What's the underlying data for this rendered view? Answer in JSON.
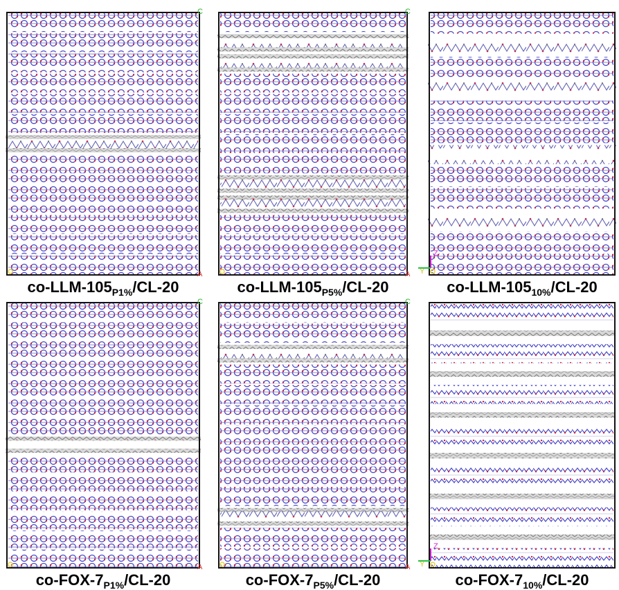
{
  "panels": [
    {
      "label": {
        "main": "co-LLM-105",
        "sub": "P1%",
        "tail": "/CL-20"
      },
      "corners": {
        "top_right": "C",
        "bottom_right": "A"
      }
    },
    {
      "label": {
        "main": "co-LLM-105",
        "sub": "P5%",
        "tail": "/CL-20"
      },
      "corners": {
        "top_right": "C",
        "bottom_right": "A"
      }
    },
    {
      "label": {
        "main": "co-LLM-105",
        "sub": "10%",
        "tail": "/CL-20"
      },
      "corners": {
        "axis_y": "Y",
        "axis_z": "Z"
      }
    },
    {
      "label": {
        "main": "co-FOX-7",
        "sub": "P1%",
        "tail": "/CL-20"
      },
      "corners": {
        "top_right": "C",
        "bottom_right": "A"
      }
    },
    {
      "label": {
        "main": "co-FOX-7",
        "sub": "P5%",
        "tail": "/CL-20"
      },
      "corners": {
        "top_right": "C",
        "bottom_right": "A"
      }
    },
    {
      "label": {
        "main": "co-FOX-7",
        "sub": "10%",
        "tail": "/CL-20"
      },
      "corners": {
        "axis_y": "Y",
        "axis_z": "Z"
      }
    }
  ]
}
